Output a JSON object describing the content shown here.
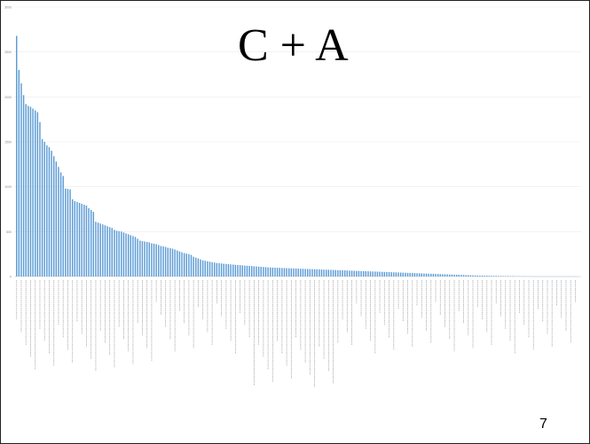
{
  "slide": {
    "title": "C + A",
    "page_number": "7"
  },
  "chart_data": {
    "type": "bar",
    "title": "",
    "xlabel": "",
    "ylabel": "",
    "ylim": [
      0,
      3000
    ],
    "yticks": [
      0,
      500,
      1000,
      1500,
      2000,
      2500,
      3000
    ],
    "grid": true,
    "bar_color": "#5b9bd5",
    "category_labels_legible": false,
    "values": [
      2680,
      2300,
      2150,
      2020,
      1920,
      1900,
      1890,
      1870,
      1850,
      1830,
      1720,
      1530,
      1500,
      1460,
      1440,
      1400,
      1340,
      1280,
      1220,
      1160,
      1120,
      980,
      975,
      970,
      860,
      840,
      830,
      820,
      810,
      800,
      790,
      760,
      740,
      720,
      610,
      600,
      590,
      580,
      570,
      560,
      550,
      540,
      520,
      510,
      505,
      500,
      490,
      480,
      470,
      460,
      450,
      440,
      420,
      400,
      395,
      390,
      385,
      380,
      370,
      365,
      360,
      350,
      340,
      335,
      330,
      320,
      315,
      310,
      300,
      290,
      280,
      270,
      260,
      255,
      250,
      240,
      220,
      210,
      200,
      190,
      180,
      175,
      170,
      165,
      160,
      155,
      150,
      148,
      145,
      142,
      140,
      138,
      135,
      133,
      130,
      128,
      126,
      124,
      122,
      120,
      118,
      116,
      114,
      112,
      110,
      108,
      106,
      104,
      102,
      100,
      99,
      98,
      97,
      96,
      95,
      94,
      93,
      92,
      91,
      90,
      89,
      88,
      87,
      86,
      85,
      84,
      83,
      82,
      81,
      80,
      79,
      78,
      77,
      76,
      75,
      74,
      73,
      72,
      71,
      70,
      69,
      68,
      67,
      66,
      65,
      64,
      63,
      62,
      61,
      60,
      59,
      58,
      57,
      56,
      55,
      54,
      53,
      52,
      51,
      50,
      49,
      48,
      47,
      46,
      45,
      44,
      43,
      42,
      41,
      40,
      39,
      38,
      37,
      36,
      35,
      34,
      33,
      32,
      31,
      30,
      29,
      28,
      27,
      26,
      25,
      24,
      23,
      22,
      21,
      20,
      19,
      18,
      17,
      16,
      15,
      14,
      13,
      12,
      11,
      10,
      10,
      9,
      9,
      8,
      8,
      7,
      7,
      6,
      6,
      5,
      5,
      5,
      4,
      4,
      4,
      3,
      3,
      3,
      2,
      2,
      2,
      2,
      1,
      1,
      1,
      1,
      1,
      1,
      1,
      1,
      1,
      1,
      1,
      1,
      1,
      1,
      1,
      1,
      1,
      1,
      1,
      1
    ]
  }
}
